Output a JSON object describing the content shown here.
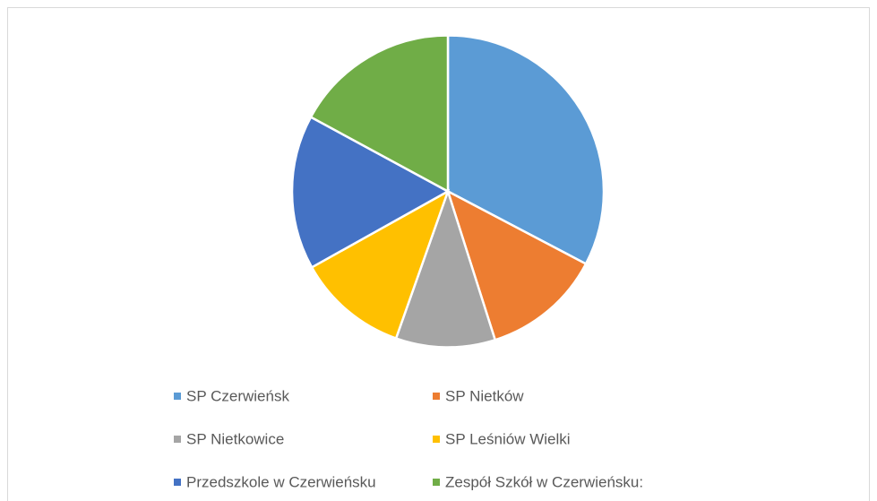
{
  "chart_data": {
    "type": "pie",
    "categories": [
      "SP Czerwieńsk",
      "SP Nietków",
      "SP Nietkowice",
      "SP Leśniów Wielki",
      "Przedszkole w Czerwieńsku",
      "Zespół Szkół w Czerwieńsku:"
    ],
    "values": [
      32.7,
      12.4,
      10.3,
      11.5,
      16.0,
      17.1
    ],
    "colors": [
      "#5b9bd5",
      "#ed7d31",
      "#a5a5a5",
      "#ffc000",
      "#4472c4",
      "#70ad47"
    ],
    "legend": "bottom"
  }
}
